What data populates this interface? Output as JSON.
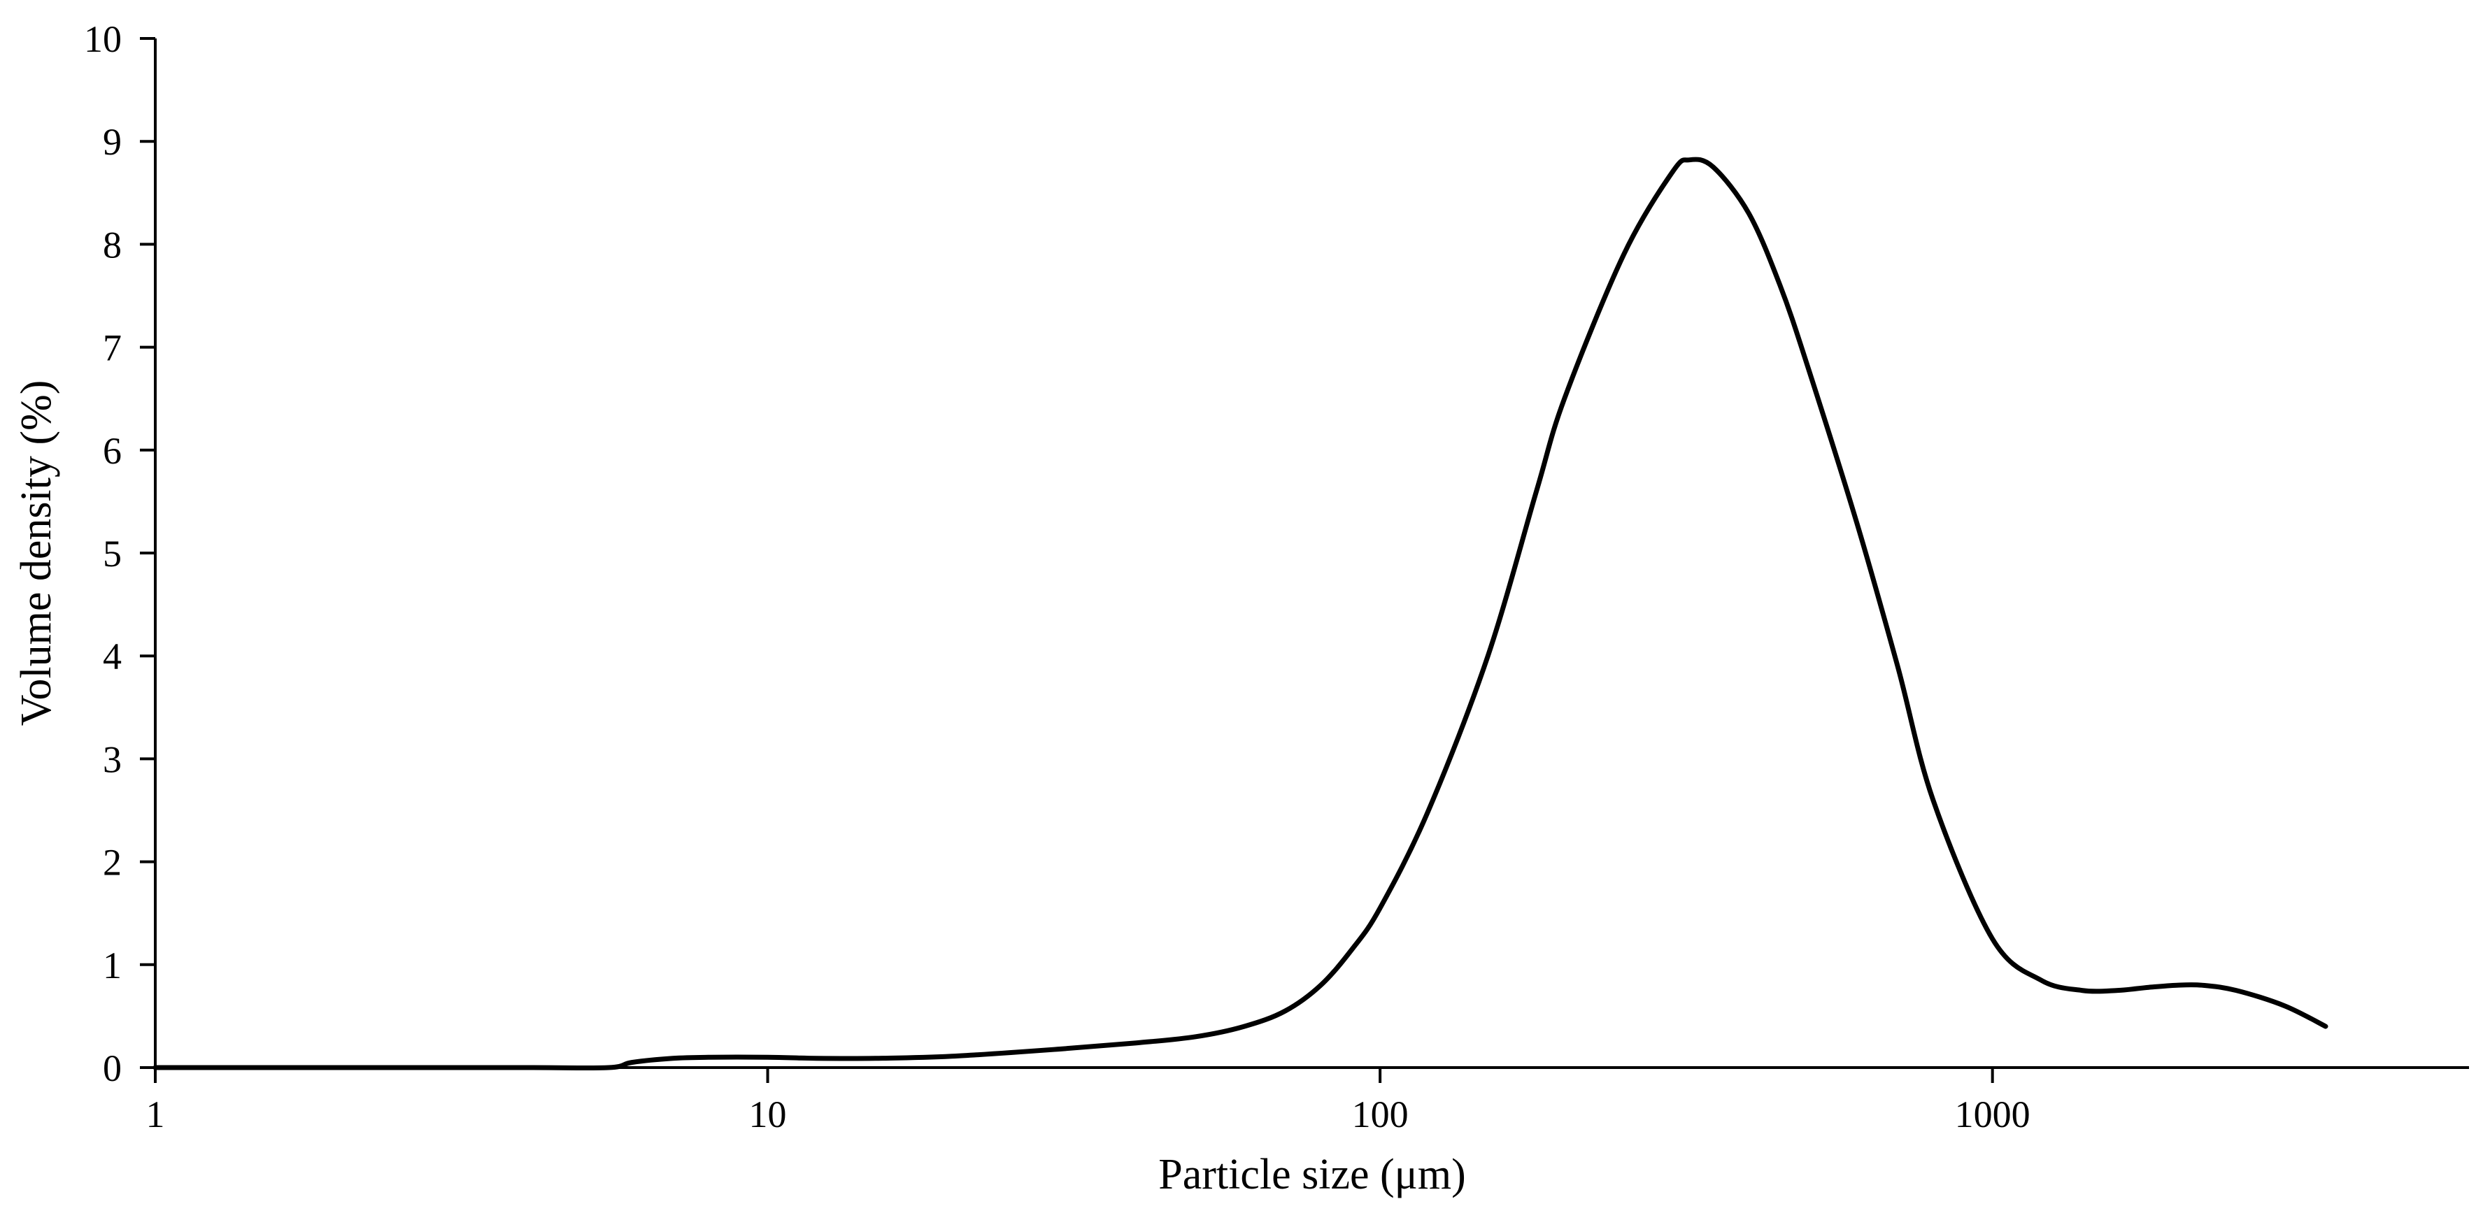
{
  "chart_data": {
    "type": "line",
    "title": "",
    "xlabel": "Particle size (μm)",
    "ylabel": "Volume density (%)",
    "xscale": "log",
    "xlim": [
      1,
      6000
    ],
    "ylim": [
      0,
      10
    ],
    "grid": false,
    "legend": "none",
    "xticks": [
      1,
      10,
      100,
      1000
    ],
    "xtick_labels": [
      "1",
      "10",
      "100",
      "1000"
    ],
    "yticks": [
      0,
      1,
      2,
      3,
      4,
      5,
      6,
      7,
      8,
      9,
      10
    ],
    "ytick_labels": [
      "0",
      "1",
      "2",
      "3",
      "4",
      "5",
      "6",
      "7",
      "8",
      "9",
      "10"
    ],
    "line_color": "#000000",
    "series": [
      {
        "x": [
          1,
          2,
          4,
          5.5,
          6,
          7,
          8,
          10,
          12,
          15,
          20,
          30,
          40,
          50,
          60,
          70,
          80,
          90,
          100,
          120,
          150,
          180,
          200,
          250,
          300,
          320,
          350,
          400,
          450,
          500,
          600,
          700,
          800,
          1000,
          1200,
          1400,
          1600,
          1800,
          2000,
          2200,
          2500,
          3000,
          3500
        ],
        "values": [
          0,
          0,
          0,
          0,
          0.05,
          0.09,
          0.1,
          0.1,
          0.09,
          0.09,
          0.11,
          0.18,
          0.24,
          0.3,
          0.4,
          0.55,
          0.8,
          1.15,
          1.55,
          2.5,
          4.0,
          5.6,
          6.5,
          7.9,
          8.7,
          8.82,
          8.75,
          8.3,
          7.6,
          6.8,
          5.3,
          3.9,
          2.6,
          1.25,
          0.85,
          0.75,
          0.75,
          0.78,
          0.8,
          0.8,
          0.75,
          0.6,
          0.4
        ]
      }
    ]
  }
}
